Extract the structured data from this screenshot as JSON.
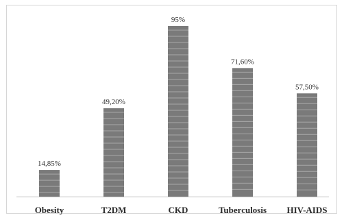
{
  "chart_data": {
    "type": "bar",
    "categories": [
      "Obesity",
      "T2DM",
      "CKD",
      "Tuberculosis",
      "HIV-AIDS"
    ],
    "values": [
      14.85,
      49.2,
      95,
      71.6,
      57.5
    ],
    "value_labels": [
      "14,85%",
      "49,20%",
      "95%",
      "71,60%",
      "57,50%"
    ],
    "title": "",
    "xlabel": "",
    "ylabel": "",
    "ylim": [
      0,
      100
    ],
    "grid": false,
    "legend": "none",
    "bar_color": "#7a7a7a",
    "bar_stripe_color": "#a8a8a8"
  }
}
